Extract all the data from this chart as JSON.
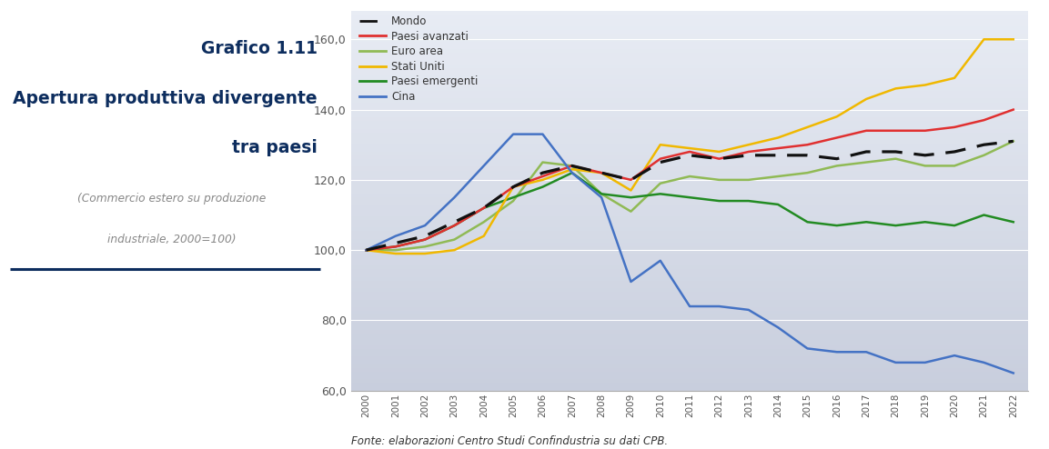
{
  "years": [
    2000,
    2001,
    2002,
    2003,
    2004,
    2005,
    2006,
    2007,
    2008,
    2009,
    2010,
    2011,
    2012,
    2013,
    2014,
    2015,
    2016,
    2017,
    2018,
    2019,
    2020,
    2021,
    2022
  ],
  "mondo": [
    100,
    102,
    104,
    108,
    112,
    118,
    122,
    124,
    122,
    120,
    125,
    127,
    126,
    127,
    127,
    127,
    126,
    128,
    128,
    127,
    128,
    130,
    131
  ],
  "paesi_avanzati": [
    100,
    101,
    103,
    107,
    112,
    118,
    121,
    124,
    122,
    120,
    126,
    128,
    126,
    128,
    129,
    130,
    132,
    134,
    134,
    134,
    135,
    137,
    140
  ],
  "euro_area": [
    100,
    100,
    101,
    103,
    108,
    114,
    125,
    124,
    116,
    111,
    119,
    121,
    120,
    120,
    121,
    122,
    124,
    125,
    126,
    124,
    124,
    127,
    131
  ],
  "stati_uniti": [
    100,
    99,
    99,
    100,
    104,
    118,
    120,
    123,
    122,
    117,
    130,
    129,
    128,
    130,
    132,
    135,
    138,
    143,
    146,
    147,
    149,
    160,
    160
  ],
  "paesi_emergenti": [
    100,
    101,
    103,
    107,
    112,
    115,
    118,
    122,
    116,
    115,
    116,
    115,
    114,
    114,
    113,
    108,
    107,
    108,
    107,
    108,
    107,
    110,
    108
  ],
  "cina": [
    100,
    104,
    107,
    115,
    124,
    133,
    133,
    122,
    115,
    91,
    97,
    84,
    84,
    83,
    78,
    72,
    71,
    71,
    68,
    68,
    70,
    68,
    65
  ],
  "colors": {
    "mondo": "#111111",
    "paesi_avanzati": "#e03030",
    "euro_area": "#90ba55",
    "stati_uniti": "#f0b800",
    "paesi_emergenti": "#228B22",
    "cina": "#4472c4"
  },
  "title_line1": "Grafico 1.11",
  "title_line2": "Apertura produttiva divergente",
  "title_line3": "tra paesi",
  "subtitle_line1": "(Commercio estero su produzione",
  "subtitle_line2": "industriale, 2000=100)",
  "footer": "Fonte: elaborazioni Centro Studi Confindustria su dati CPB.",
  "ylim": [
    60,
    168
  ],
  "yticks": [
    60.0,
    80.0,
    100.0,
    120.0,
    140.0,
    160.0
  ],
  "title_color": "#0d2d5e",
  "separator_color": "#0d2d5e",
  "bg_color_top": "#c8cedd",
  "bg_color_bottom": "#e8ecf4",
  "legend_labels": [
    "Mondo",
    "Paesi avanzati",
    "Euro area",
    "Stati Uniti",
    "Paesi emergenti",
    "Cina"
  ]
}
